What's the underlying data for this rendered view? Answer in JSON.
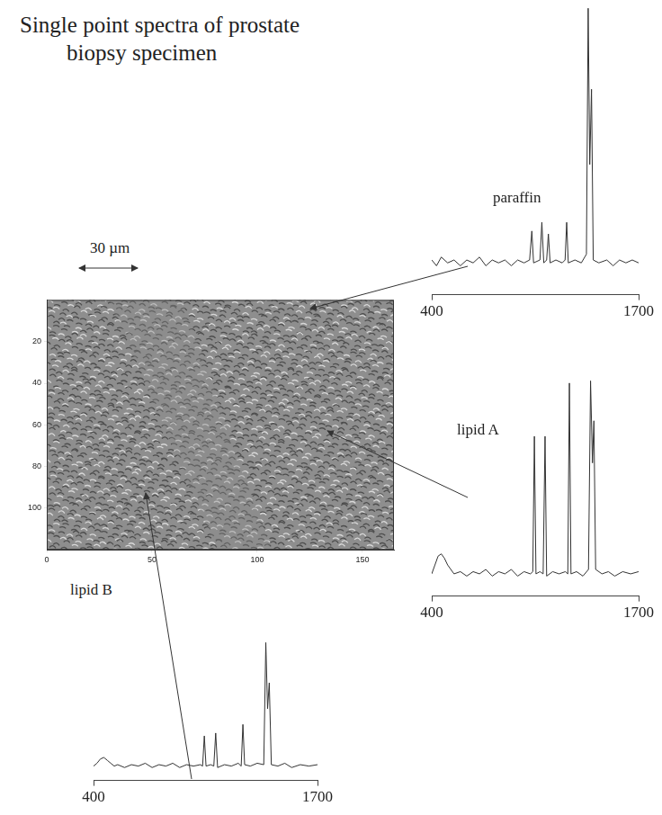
{
  "title": "Single point spectra of prostate biopsy specimen",
  "scale_bar": "30 µm",
  "chart_data": [
    {
      "type": "image",
      "xlim": [
        0,
        165
      ],
      "xticks": [
        0,
        50,
        100,
        150
      ],
      "ylim": [
        0,
        120
      ],
      "yticks": [
        20,
        40,
        60,
        80,
        100
      ]
    },
    {
      "type": "line",
      "title": "paraffin",
      "color": "#333333",
      "xlim": [
        400,
        1700
      ],
      "xticks": [
        400,
        1700
      ],
      "ylim": [
        0,
        100
      ],
      "tick_labels": "x",
      "x": [
        400,
        430,
        460,
        500,
        540,
        580,
        620,
        660,
        700,
        740,
        780,
        820,
        860,
        900,
        940,
        980,
        1015,
        1029,
        1040,
        1080,
        1092,
        1104,
        1122,
        1133,
        1144,
        1180,
        1220,
        1238,
        1248,
        1258,
        1300,
        1340,
        1372,
        1383,
        1393,
        1404,
        1415,
        1450,
        1500,
        1540,
        1580,
        1620,
        1660,
        1700
      ],
      "values": [
        12,
        10,
        13,
        11,
        12,
        10,
        12,
        11,
        13,
        10,
        12,
        11,
        12,
        10,
        12,
        11,
        12,
        22,
        11,
        12,
        25,
        11,
        12,
        21,
        11,
        12,
        11,
        12,
        25,
        11,
        12,
        11,
        14,
        99,
        45,
        71,
        12,
        11,
        12,
        10,
        12,
        11,
        12,
        11
      ]
    },
    {
      "type": "line",
      "title": "lipid A",
      "color": "#333333",
      "xlim": [
        400,
        1700
      ],
      "xticks": [
        400,
        1700
      ],
      "ylim": [
        0,
        100
      ],
      "tick_labels": "x",
      "x": [
        400,
        420,
        440,
        460,
        480,
        500,
        520,
        540,
        580,
        620,
        660,
        700,
        740,
        780,
        820,
        860,
        900,
        940,
        980,
        1020,
        1035,
        1045,
        1055,
        1080,
        1100,
        1112,
        1122,
        1160,
        1200,
        1240,
        1255,
        1265,
        1275,
        1310,
        1350,
        1385,
        1398,
        1410,
        1419,
        1430,
        1470,
        1510,
        1550,
        1600,
        1650,
        1700
      ],
      "values": [
        10,
        14,
        18,
        19,
        17,
        14,
        12,
        10,
        11,
        9,
        11,
        10,
        12,
        9,
        11,
        10,
        12,
        9,
        11,
        10,
        11,
        72,
        10,
        11,
        10,
        72,
        9,
        11,
        10,
        11,
        10,
        96,
        10,
        11,
        9,
        12,
        97,
        60,
        79,
        12,
        10,
        11,
        9,
        11,
        10,
        11
      ]
    },
    {
      "type": "line",
      "title": "lipid B",
      "color": "#333333",
      "xlim": [
        400,
        1700
      ],
      "xticks": [
        400,
        1700
      ],
      "ylim": [
        0,
        100
      ],
      "tick_labels": "x",
      "x": [
        400,
        420,
        440,
        460,
        480,
        500,
        520,
        540,
        580,
        620,
        660,
        700,
        740,
        780,
        820,
        860,
        900,
        940,
        980,
        1020,
        1033,
        1043,
        1053,
        1080,
        1098,
        1109,
        1120,
        1160,
        1200,
        1240,
        1257,
        1267,
        1277,
        1310,
        1350,
        1388,
        1400,
        1410,
        1420,
        1432,
        1470,
        1510,
        1550,
        1600,
        1650,
        1700
      ],
      "values": [
        10,
        12,
        15,
        16,
        14,
        12,
        10,
        11,
        9,
        11,
        10,
        12,
        9,
        11,
        10,
        12,
        9,
        11,
        10,
        11,
        10,
        31,
        10,
        11,
        10,
        33,
        9,
        11,
        10,
        12,
        10,
        39,
        11,
        10,
        12,
        11,
        96,
        50,
        68,
        11,
        10,
        12,
        9,
        11,
        10,
        11
      ]
    }
  ]
}
